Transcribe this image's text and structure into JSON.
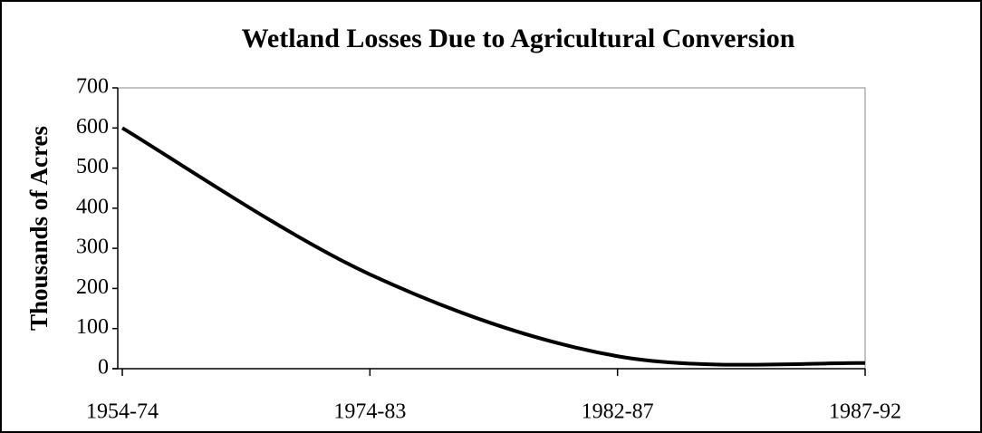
{
  "chart_data": {
    "type": "line",
    "title": "Wetland Losses Due to Agricultural Conversion",
    "y_label": "Thousands of Acres",
    "categories": [
      "1954-74",
      "1974-83",
      "1982-87",
      "1987-92"
    ],
    "values": [
      600,
      235,
      31,
      14
    ],
    "color": "#000000",
    "ylim": [
      0,
      700
    ],
    "yticks": [
      0,
      100,
      200,
      300,
      400,
      500,
      600,
      700
    ],
    "smooth": true
  }
}
